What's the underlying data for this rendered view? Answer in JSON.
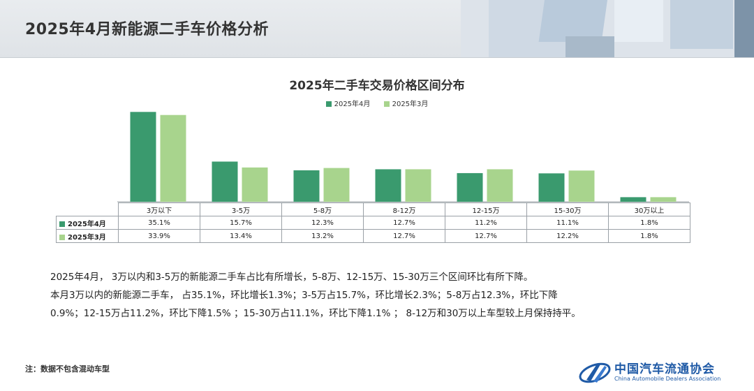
{
  "page": {
    "title": "2025年4月新能源二手车价格分析"
  },
  "colors": {
    "series_apr": "#3a9a6e",
    "series_mar": "#a8d48d"
  },
  "chart_data": {
    "type": "bar",
    "title": "2025年二手车交易价格区间分布",
    "legend_position": "top",
    "grid": false,
    "xlabel": "",
    "ylabel": "",
    "ylim": [
      0,
      36
    ],
    "categories": [
      "3万以下",
      "3-5万",
      "5-8万",
      "8-12万",
      "12-15万",
      "15-30万",
      "30万以上"
    ],
    "series": [
      {
        "name": "2025年4月",
        "values": [
          35.1,
          15.7,
          12.3,
          12.7,
          11.2,
          11.1,
          1.8
        ],
        "labels": [
          "35.1%",
          "15.7%",
          "12.3%",
          "12.7%",
          "11.2%",
          "11.1%",
          "1.8%"
        ]
      },
      {
        "name": "2025年3月",
        "values": [
          33.9,
          13.4,
          13.2,
          12.7,
          12.7,
          12.2,
          1.8
        ],
        "labels": [
          "33.9%",
          "13.4%",
          "13.2%",
          "12.7%",
          "12.7%",
          "12.2%",
          "1.8%"
        ]
      }
    ]
  },
  "description": {
    "line1": "2025年4月， 3万以内和3-5万的新能源二手车占比有所增长，5-8万、12-15万、15-30万三个区间环比有所下降。",
    "line2": "本月3万以内的新能源二手车， 占35.1%，环比增长1.3%；3-5万占15.7%，环比增长2.3%；5-8万占12.3%，环比下降",
    "line3": "0.9%；12-15万占11.2%，环比下降1.5% ；15-30万占11.1%，环比下降1.1% ； 8-12万和30万以上车型较上月保持持平。"
  },
  "footer": {
    "note": "注：数据不包含混动车型",
    "logo_cn": "中国汽车流通协会",
    "logo_en": "China Automobile Dealers Association"
  }
}
